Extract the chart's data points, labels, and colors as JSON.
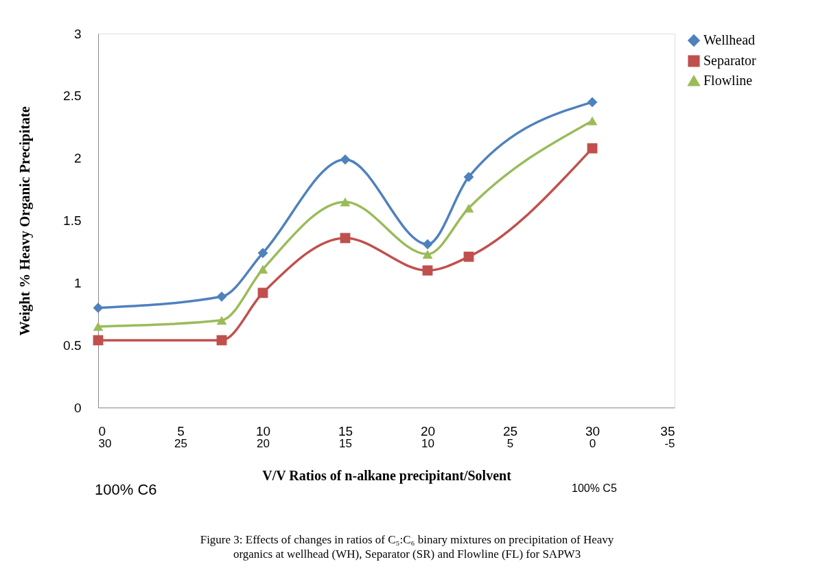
{
  "chart_data": {
    "type": "line",
    "xlabel": "V/V Ratios of n-alkane precipitant/Solvent",
    "ylabel": "Weight % Heavy Organic Precipitate",
    "x": [
      0,
      7.5,
      10,
      15,
      20,
      22.5,
      30
    ],
    "series": [
      {
        "name": "Wellhead",
        "color": "#4f81bd",
        "marker": "diamond",
        "values": [
          0.8,
          0.89,
          1.24,
          1.99,
          1.31,
          1.85,
          2.45
        ]
      },
      {
        "name": "Separator",
        "color": "#c0504d",
        "marker": "square",
        "values": [
          0.54,
          0.54,
          0.92,
          1.36,
          1.1,
          1.21,
          2.08
        ]
      },
      {
        "name": "Flowline",
        "color": "#9bbb59",
        "marker": "triangle",
        "values": [
          0.65,
          0.7,
          1.11,
          1.65,
          1.23,
          1.6,
          2.3
        ]
      }
    ],
    "xlim": [
      0,
      35
    ],
    "xticks": [
      0,
      5,
      10,
      15,
      20,
      25,
      30,
      35
    ],
    "x2lim": [
      30,
      -5
    ],
    "x2ticks": [
      30,
      25,
      20,
      15,
      10,
      5,
      0,
      -5
    ],
    "ylim": [
      0,
      3
    ],
    "yticks": [
      0,
      0.5,
      1,
      1.5,
      2,
      2.5,
      3
    ],
    "grid": false,
    "legend": "right",
    "line_style": "solid",
    "annotations": [
      "100% C6",
      "100% C5",
      "Figure 3: Effects of changes in ratios of C₅:C₆ binary mixtures on precipitation of Heavy\norganics  at wellhead (WH), Separator (SR) and Flowline (FL) for SAPW3"
    ]
  }
}
